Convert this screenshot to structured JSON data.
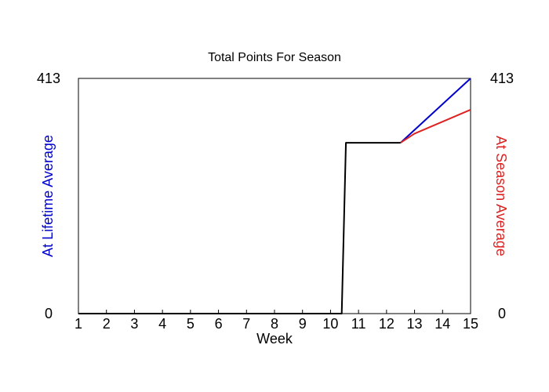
{
  "chart_data": {
    "type": "line",
    "title": "Total Points For Season",
    "xlabel": "Week",
    "ylabel_left": "At Lifetime Average",
    "ylabel_right": "At Season Average",
    "x_ticks": [
      1,
      2,
      3,
      4,
      5,
      6,
      7,
      8,
      9,
      10,
      11,
      12,
      13,
      14,
      15
    ],
    "xlim": [
      1,
      15
    ],
    "ylim": [
      0,
      413
    ],
    "y_ticks_left": [
      "0",
      "413"
    ],
    "y_ticks_right": [
      "0",
      "413"
    ],
    "grid": false,
    "series": [
      {
        "color": "#0000cc",
        "x": [
          12.5,
          15
        ],
        "y": [
          300,
          413
        ]
      },
      {
        "color": "#dd2222",
        "x": [
          12.5,
          13,
          14,
          15
        ],
        "y": [
          300,
          316,
          337,
          358
        ]
      },
      {
        "color": "#000000",
        "x": [
          1,
          10.4,
          10.55,
          12.5
        ],
        "y": [
          0,
          0,
          300,
          300
        ]
      }
    ],
    "colors": {
      "left_label": "#0000cc",
      "right_label": "#dd2222",
      "axis": "#000000"
    }
  }
}
